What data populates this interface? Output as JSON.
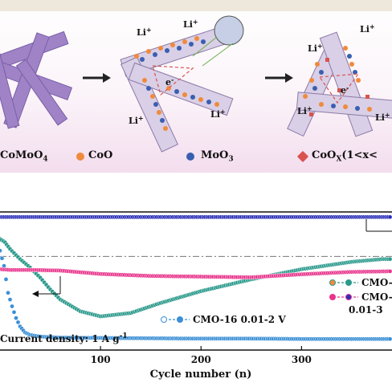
{
  "schematic": {
    "ion_label": "Li",
    "ion_charge": "+",
    "electron_label": "e",
    "electron_charge": "-",
    "legend": {
      "cmo": "CoMoO",
      "cmo_sub": "4",
      "coo": "CoO",
      "moo3": "MoO",
      "moo3_sub": "3",
      "coox": "CoO",
      "coox_sub": "X",
      "coox_range": "(1<x<"
    },
    "colors": {
      "rod": "#9f83c6",
      "coo_dot": "#f08a3c",
      "moo3_dot": "#3a5fb0",
      "coox_marker": "#d9534f",
      "arrow": "#222222"
    }
  },
  "chart_data": {
    "type": "scatter",
    "xlabel": "Cycle number (n)",
    "xticks": [
      "100",
      "200",
      "300"
    ],
    "xlim": [
      0,
      390
    ],
    "annotation": "Current density: 1 A g",
    "annotation_sup": "-1",
    "series": [
      {
        "name": "CMO-16 0.01-2 V",
        "color": "#3a8fd6",
        "points": [
          [
            0,
            295
          ],
          [
            4,
            250
          ],
          [
            8,
            170
          ],
          [
            12,
            130
          ],
          [
            16,
            95
          ],
          [
            20,
            70
          ],
          [
            25,
            52
          ],
          [
            30,
            45
          ],
          [
            40,
            40
          ],
          [
            60,
            37
          ],
          [
            100,
            36
          ],
          [
            150,
            35
          ],
          [
            200,
            34
          ],
          [
            250,
            34
          ],
          [
            300,
            33
          ],
          [
            350,
            33
          ],
          [
            390,
            33
          ]
        ]
      },
      {
        "name": "CMO-",
        "color": "#2b9a8c",
        "points": [
          [
            0,
            330
          ],
          [
            5,
            320
          ],
          [
            10,
            300
          ],
          [
            20,
            270
          ],
          [
            30,
            245
          ],
          [
            40,
            215
          ],
          [
            50,
            180
          ],
          [
            60,
            150
          ],
          [
            80,
            115
          ],
          [
            100,
            100
          ],
          [
            130,
            110
          ],
          [
            160,
            140
          ],
          [
            200,
            175
          ],
          [
            250,
            210
          ],
          [
            300,
            240
          ],
          [
            350,
            262
          ],
          [
            380,
            270
          ],
          [
            390,
            270
          ]
        ]
      },
      {
        "name": "CMO-",
        "color": "#e8348c",
        "points": [
          [
            0,
            240
          ],
          [
            10,
            238
          ],
          [
            30,
            238
          ],
          [
            60,
            236
          ],
          [
            100,
            226
          ],
          [
            150,
            220
          ],
          [
            200,
            218
          ],
          [
            250,
            216
          ],
          [
            300,
            225
          ],
          [
            350,
            232
          ],
          [
            390,
            234
          ]
        ]
      },
      {
        "name": "0.01-3",
        "color": "#2a2fb8",
        "points": [
          [
            0,
            395
          ],
          [
            50,
            395
          ],
          [
            100,
            395
          ],
          [
            150,
            395
          ],
          [
            200,
            395
          ],
          [
            250,
            395
          ],
          [
            300,
            395
          ],
          [
            350,
            395
          ],
          [
            390,
            395
          ]
        ]
      }
    ],
    "reference_line": 278
  }
}
